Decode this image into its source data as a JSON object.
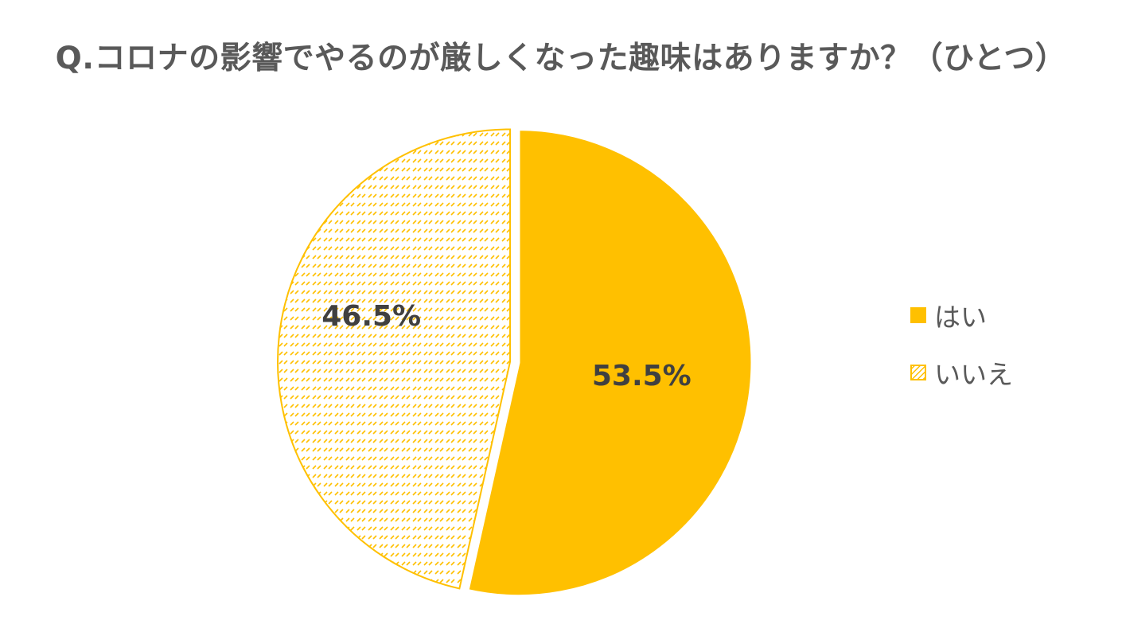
{
  "chart_data": {
    "type": "pie",
    "title": "Q.コロナの影響でやるのが厳しくなった趣味はありますか？（ひとつ）",
    "categories": [
      "はい",
      "いいえ"
    ],
    "values": [
      53.5,
      46.5
    ],
    "data_labels": [
      "53.5%",
      "46.5%"
    ],
    "legend_position": "right",
    "start_angle": "12 o'clock, clockwise",
    "colors": {
      "はい": "#FFC000",
      "いいえ": "#FFC000 hatched on white"
    },
    "label_color": "#404040"
  }
}
